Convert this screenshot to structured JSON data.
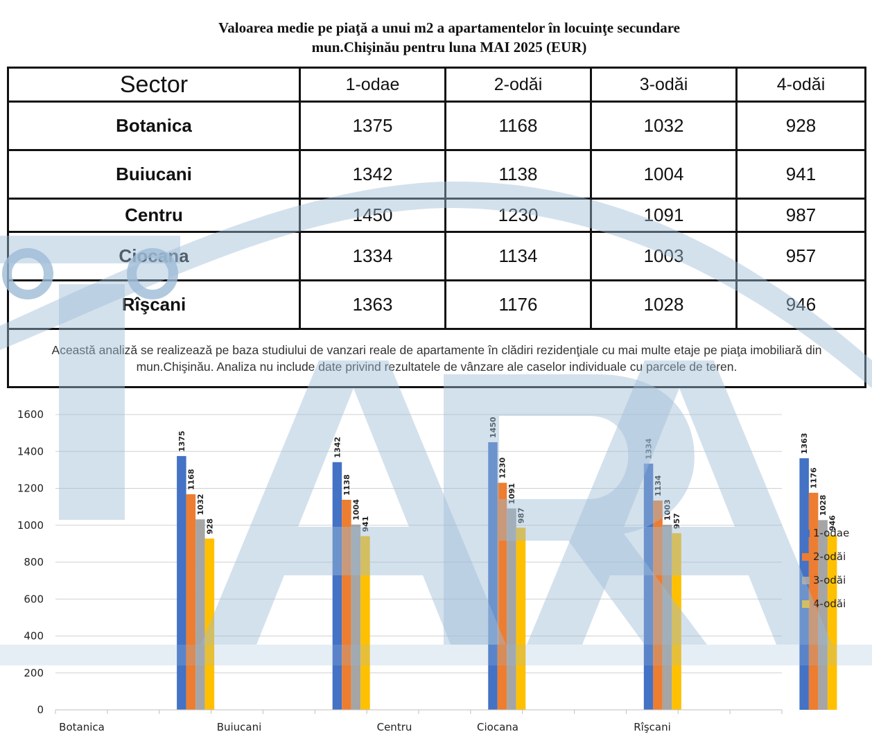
{
  "title": {
    "line1": "Valoarea medie pe piaţă a unui m2 a apartamentelor în locuinţe secundare",
    "line2": "mun.Chişinău pentru luna  MAI 2025 (EUR)"
  },
  "table": {
    "header": [
      "Sector",
      "1-odae",
      "2-odăi",
      "3-odăi",
      "4-odăi"
    ],
    "rows": [
      {
        "sector": "Botanica",
        "values": [
          "1375",
          "1168",
          "1032",
          "928"
        ]
      },
      {
        "sector": "Buiucani",
        "values": [
          "1342",
          "1138",
          "1004",
          "941"
        ]
      },
      {
        "sector": "Centru",
        "values": [
          "1450",
          "1230",
          "1091",
          "987"
        ]
      },
      {
        "sector": "Ciocana",
        "values": [
          "1334",
          "1134",
          "1003",
          "957"
        ]
      },
      {
        "sector": "Rîşcani",
        "values": [
          "1363",
          "1176",
          "1028",
          "946"
        ]
      }
    ],
    "note": "Această analiză se realizează pe baza studiului de vanzari reale de apartamente în clădiri rezidenţiale cu mai multe etaje pe piaţa imobiliară din mun.Chişinău. Analiza nu include date privind rezultatele de vânzare ale caselor individuale cu parcele de teren."
  },
  "watermark": {
    "text": "ARA",
    "color": "#9dbcd6"
  },
  "chart_data": {
    "type": "bar",
    "categories": [
      "Botanica",
      "Buiucani",
      "Centru",
      "Ciocana",
      "Rîşcani"
    ],
    "series": [
      {
        "name": "1-odae",
        "color": "#4472c4",
        "values": [
          1375,
          1342,
          1450,
          1334,
          1363
        ]
      },
      {
        "name": "2-odăi",
        "color": "#ed7d31",
        "values": [
          1168,
          1138,
          1230,
          1134,
          1176
        ]
      },
      {
        "name": "3-odăi",
        "color": "#a5a5a5",
        "values": [
          1032,
          1004,
          1091,
          1003,
          1028
        ]
      },
      {
        "name": "4-odăi",
        "color": "#ffc000",
        "values": [
          928,
          941,
          987,
          957,
          946
        ]
      }
    ],
    "ylim": [
      0,
      1600
    ],
    "yticks": [
      0,
      200,
      400,
      600,
      800,
      1000,
      1200,
      1400,
      1600
    ],
    "grid": true,
    "legend": "right",
    "data_labels": true
  }
}
